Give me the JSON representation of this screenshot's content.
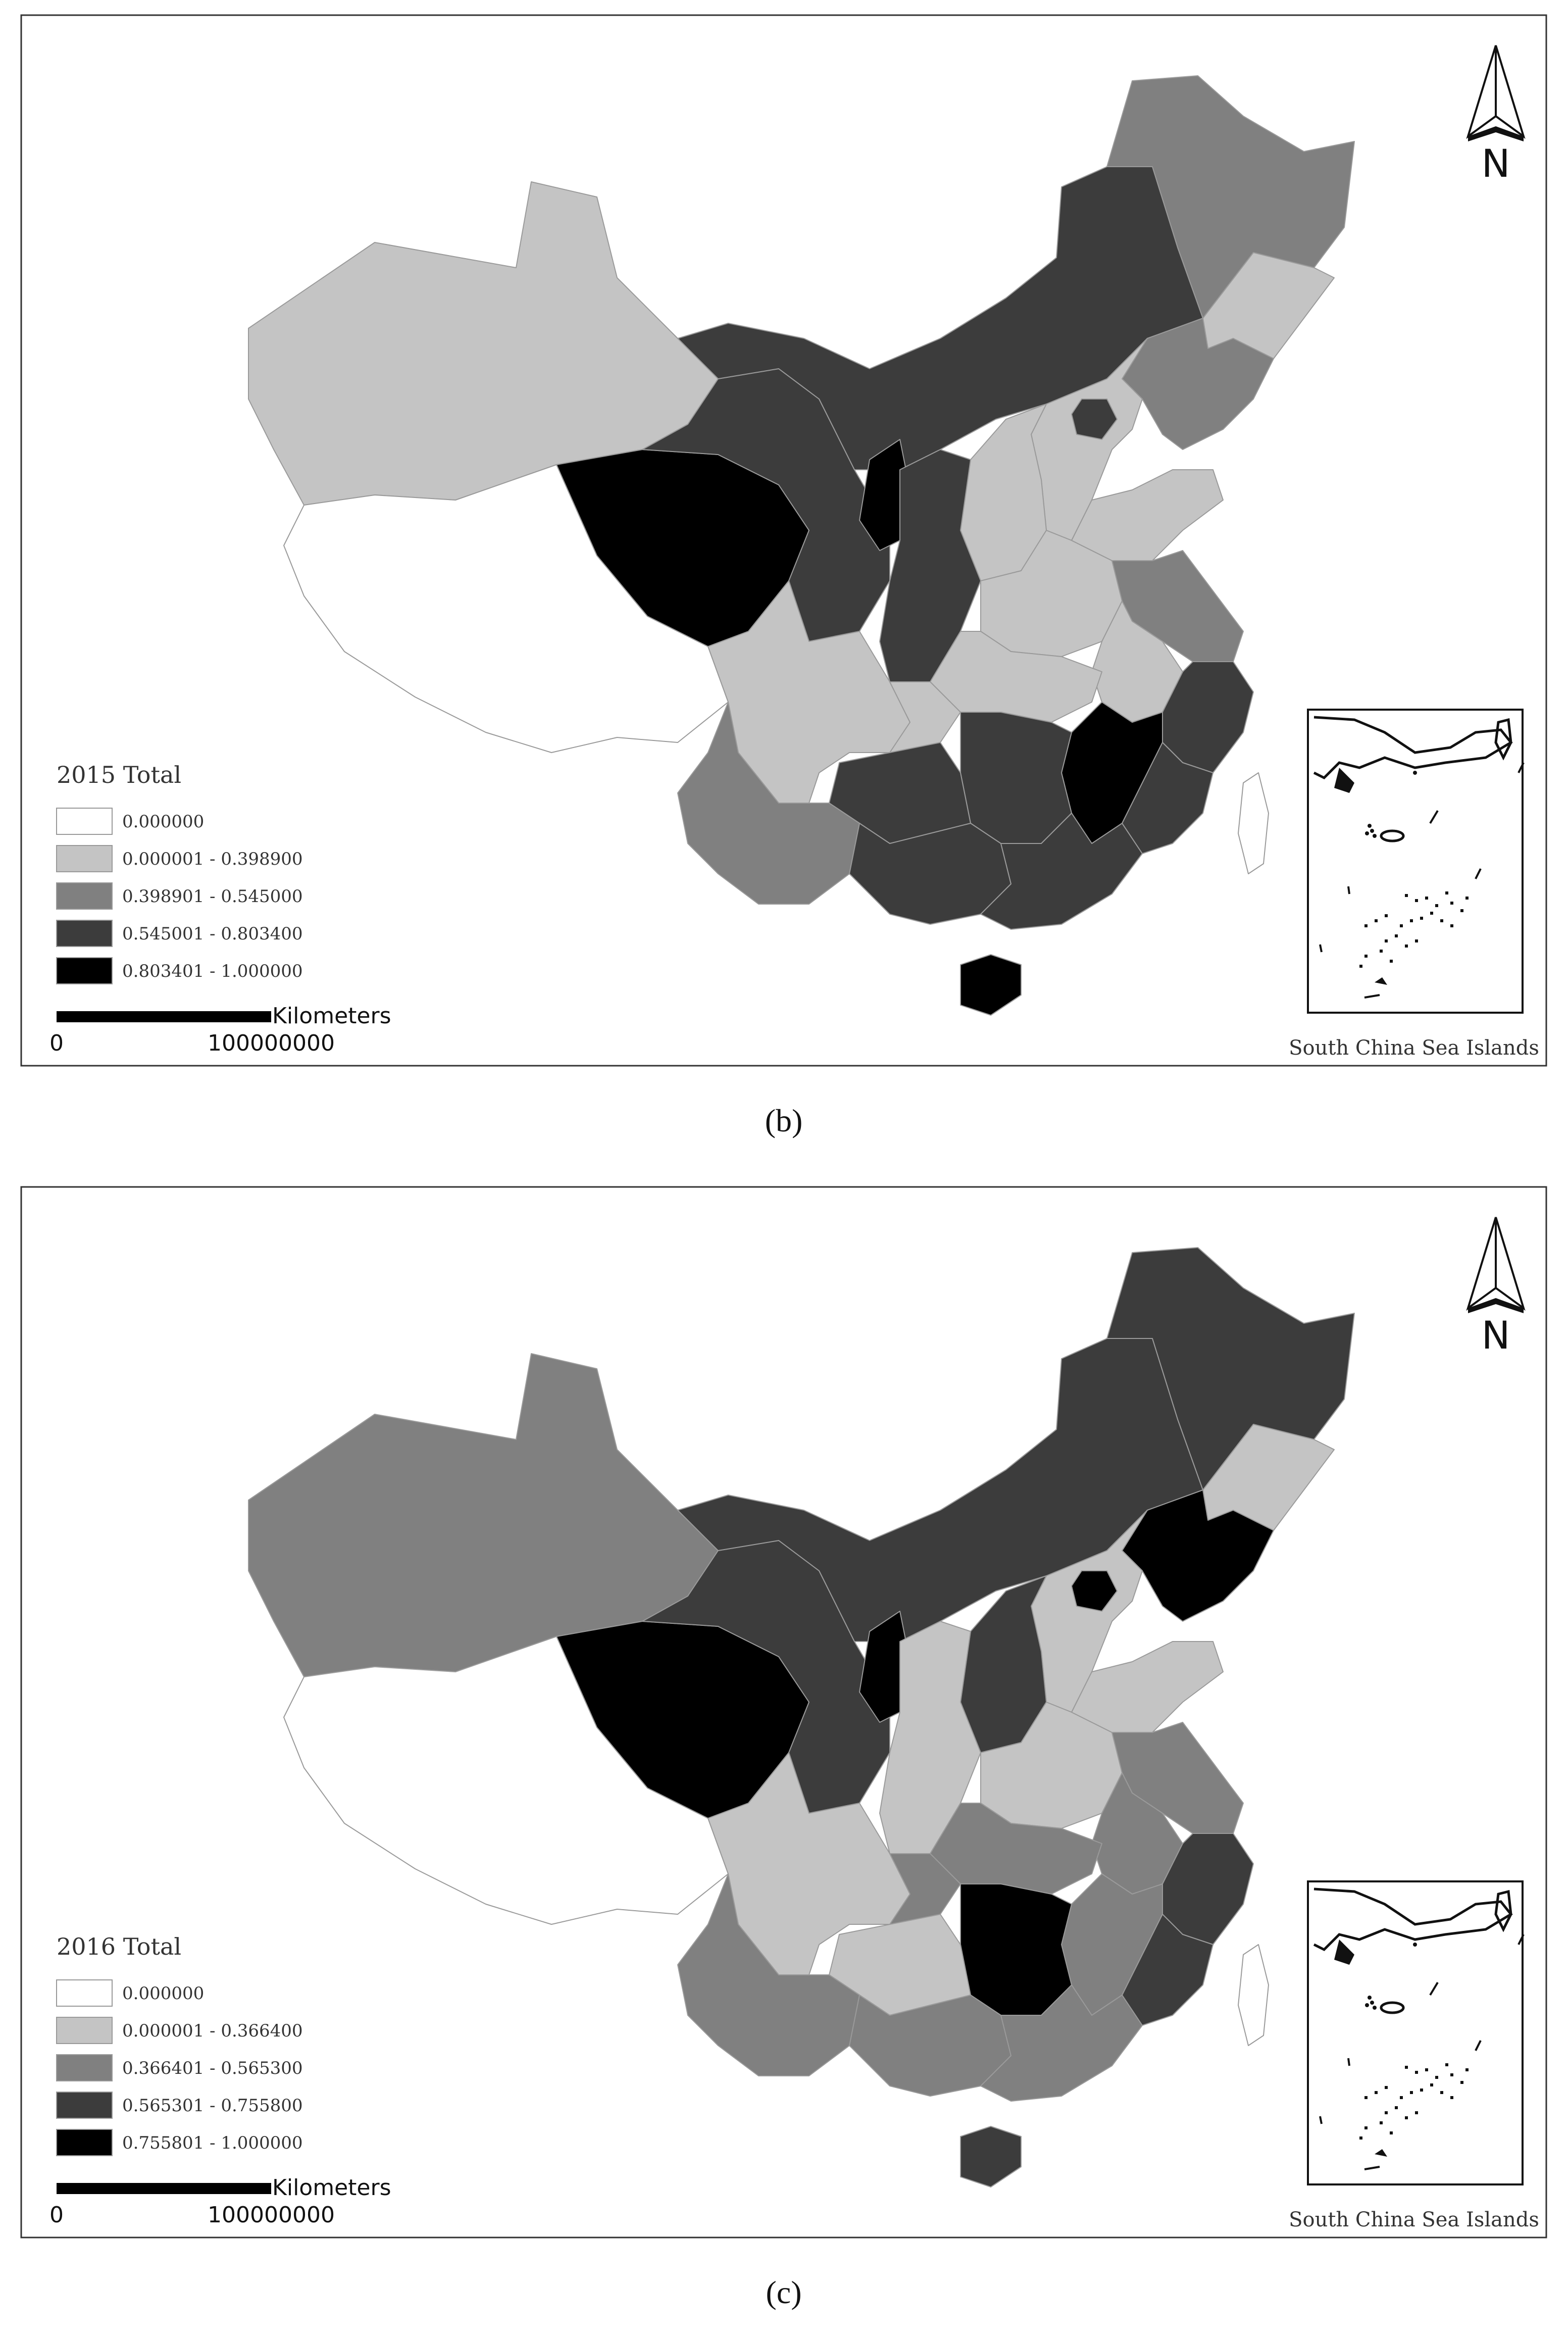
{
  "panels": [
    {
      "id": "b",
      "caption": "(b)",
      "legend_title": "2015 Total",
      "legend": [
        {
          "label": "0.000000",
          "color": "#ffffff"
        },
        {
          "label": "0.000001 - 0.398900",
          "color": "#c4c4c4"
        },
        {
          "label": "0.398901 - 0.545000",
          "color": "#808080"
        },
        {
          "label": "0.545001 - 0.803400",
          "color": "#3c3c3c"
        },
        {
          "label": "0.803401 - 1.000000",
          "color": "#000000"
        }
      ],
      "scale_unit": "Kilometers",
      "scale_start": "0",
      "scale_end": "100000000",
      "north_label": "N",
      "inset_caption": "South China Sea Islands",
      "regions": {
        "xinjiang": 1,
        "tibet": 0,
        "qinghai": 4,
        "gansu": 3,
        "inner_mongolia": 3,
        "heilongjiang": 2,
        "jilin": 1,
        "liaoning": 2,
        "beijing": 3,
        "hebei": 1,
        "shanxi": 1,
        "ningxia": 4,
        "shaanxi": 3,
        "henan": 1,
        "shandong": 1,
        "jiangsu": 2,
        "anhui": 1,
        "hubei": 1,
        "sichuan": 1,
        "chongqing": 1,
        "zhejiang": 3,
        "jiangxi": 4,
        "hunan": 3,
        "guizhou": 3,
        "yunnan": 2,
        "guangxi": 3,
        "guangdong": 3,
        "fujian": 3,
        "hainan": 4,
        "taiwan": 0
      }
    },
    {
      "id": "c",
      "caption": "(c)",
      "legend_title": "2016 Total",
      "legend": [
        {
          "label": "0.000000",
          "color": "#ffffff"
        },
        {
          "label": "0.000001 - 0.366400",
          "color": "#c4c4c4"
        },
        {
          "label": "0.366401 - 0.565300",
          "color": "#808080"
        },
        {
          "label": "0.565301 - 0.755800",
          "color": "#3c3c3c"
        },
        {
          "label": "0.755801 - 1.000000",
          "color": "#000000"
        }
      ],
      "scale_unit": "Kilometers",
      "scale_start": "0",
      "scale_end": "100000000",
      "north_label": "N",
      "inset_caption": "South China Sea Islands",
      "regions": {
        "xinjiang": 2,
        "tibet": 0,
        "qinghai": 4,
        "gansu": 3,
        "inner_mongolia": 3,
        "heilongjiang": 3,
        "jilin": 1,
        "liaoning": 4,
        "beijing": 4,
        "hebei": 1,
        "shanxi": 3,
        "ningxia": 4,
        "shaanxi": 1,
        "henan": 1,
        "shandong": 1,
        "jiangsu": 2,
        "anhui": 2,
        "hubei": 2,
        "sichuan": 1,
        "chongqing": 2,
        "zhejiang": 3,
        "jiangxi": 2,
        "hunan": 4,
        "guizhou": 1,
        "yunnan": 2,
        "guangxi": 2,
        "guangdong": 2,
        "fujian": 3,
        "hainan": 3,
        "taiwan": 0
      }
    }
  ]
}
